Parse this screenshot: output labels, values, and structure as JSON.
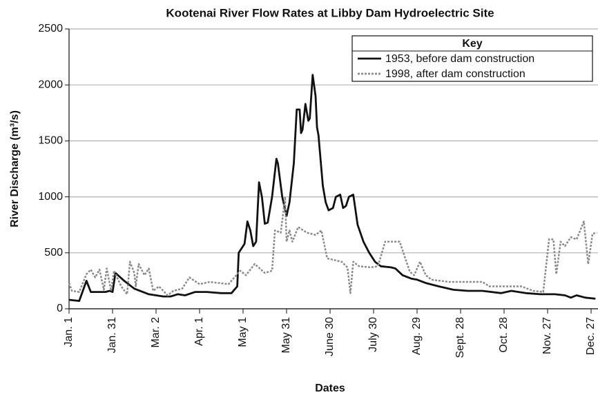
{
  "chart_data": {
    "type": "line",
    "title": "Kootenai River Flow Rates at Libby Dam Hydroelectric Site",
    "xlabel": "Dates",
    "ylabel": "River Discharge (m³/s)",
    "legend_title": "Key",
    "legend": "top-right",
    "grid": true,
    "xlim": [
      0,
      364
    ],
    "ylim": [
      0,
      2500
    ],
    "yticks": [
      0,
      500,
      1000,
      1500,
      2000,
      2500
    ],
    "xticks": [
      {
        "value": 0,
        "label": "Jan. 1"
      },
      {
        "value": 30,
        "label": "Jan. 31"
      },
      {
        "value": 60,
        "label": "Mar. 2"
      },
      {
        "value": 90,
        "label": "Apr. 1"
      },
      {
        "value": 120,
        "label": "May 1"
      },
      {
        "value": 150,
        "label": "May 31"
      },
      {
        "value": 180,
        "label": "June 30"
      },
      {
        "value": 210,
        "label": "July 30"
      },
      {
        "value": 240,
        "label": "Aug. 29"
      },
      {
        "value": 270,
        "label": "Sept. 28"
      },
      {
        "value": 300,
        "label": "Oct. 28"
      },
      {
        "value": 330,
        "label": "Nov. 27"
      },
      {
        "value": 360,
        "label": "Dec. 27"
      }
    ],
    "series": [
      {
        "name": "1953, before dam construction",
        "color": "#111111",
        "dash": "solid",
        "x": [
          0,
          7,
          12,
          15,
          25,
          28,
          30,
          32,
          38,
          45,
          55,
          65,
          70,
          75,
          80,
          87,
          95,
          105,
          112,
          116,
          117,
          121,
          123,
          125,
          127,
          129,
          131,
          133,
          135,
          137,
          140,
          143,
          144,
          147,
          150,
          152,
          155,
          157,
          159,
          160,
          161,
          163,
          165,
          166,
          168,
          170,
          171,
          172,
          175,
          177,
          179,
          182,
          184,
          187,
          189,
          191,
          193,
          196,
          199,
          203,
          207,
          211,
          215,
          222,
          225,
          230,
          236,
          240,
          246,
          255,
          265,
          275,
          285,
          298,
          305,
          315,
          325,
          335,
          342,
          346,
          350,
          356,
          363
        ],
        "values": [
          80,
          70,
          250,
          150,
          150,
          160,
          150,
          320,
          250,
          180,
          130,
          110,
          110,
          130,
          120,
          150,
          150,
          140,
          140,
          200,
          500,
          580,
          780,
          700,
          560,
          600,
          1130,
          1000,
          760,
          770,
          1000,
          1340,
          1300,
          1000,
          830,
          950,
          1300,
          1780,
          1780,
          1570,
          1600,
          1830,
          1680,
          1700,
          2090,
          1900,
          1620,
          1550,
          1100,
          950,
          880,
          900,
          1000,
          1020,
          900,
          920,
          1000,
          1020,
          750,
          600,
          500,
          420,
          380,
          370,
          360,
          300,
          270,
          260,
          230,
          200,
          170,
          160,
          160,
          140,
          160,
          140,
          130,
          130,
          120,
          100,
          120,
          100,
          90
        ]
      },
      {
        "name": "1998, after dam construction",
        "color": "#8a8a8a",
        "dash": "dotted",
        "x": [
          0,
          2,
          7,
          12,
          15,
          18,
          21,
          24,
          26,
          29,
          31,
          36,
          40,
          42,
          45,
          46,
          48,
          52,
          55,
          58,
          62,
          68,
          72,
          78,
          83,
          90,
          97,
          110,
          118,
          122,
          128,
          135,
          140,
          142,
          146,
          149,
          150,
          152,
          154,
          158,
          164,
          170,
          174,
          178,
          188,
          192,
          194,
          196,
          200,
          208,
          213,
          218,
          228,
          235,
          238,
          242,
          246,
          250,
          262,
          285,
          290,
          312,
          320,
          327,
          331,
          334,
          336,
          339,
          342,
          346,
          350,
          355,
          358,
          361,
          364
        ],
        "values": [
          230,
          160,
          150,
          310,
          350,
          280,
          350,
          170,
          360,
          160,
          340,
          200,
          130,
          420,
          320,
          200,
          400,
          300,
          360,
          160,
          200,
          120,
          160,
          180,
          280,
          220,
          240,
          220,
          340,
          300,
          400,
          320,
          340,
          700,
          680,
          1000,
          600,
          700,
          600,
          730,
          680,
          660,
          700,
          450,
          420,
          370,
          140,
          420,
          380,
          370,
          380,
          600,
          600,
          330,
          300,
          420,
          300,
          260,
          240,
          240,
          200,
          200,
          160,
          150,
          620,
          620,
          310,
          600,
          560,
          640,
          620,
          780,
          400,
          670,
          680
        ]
      }
    ]
  }
}
